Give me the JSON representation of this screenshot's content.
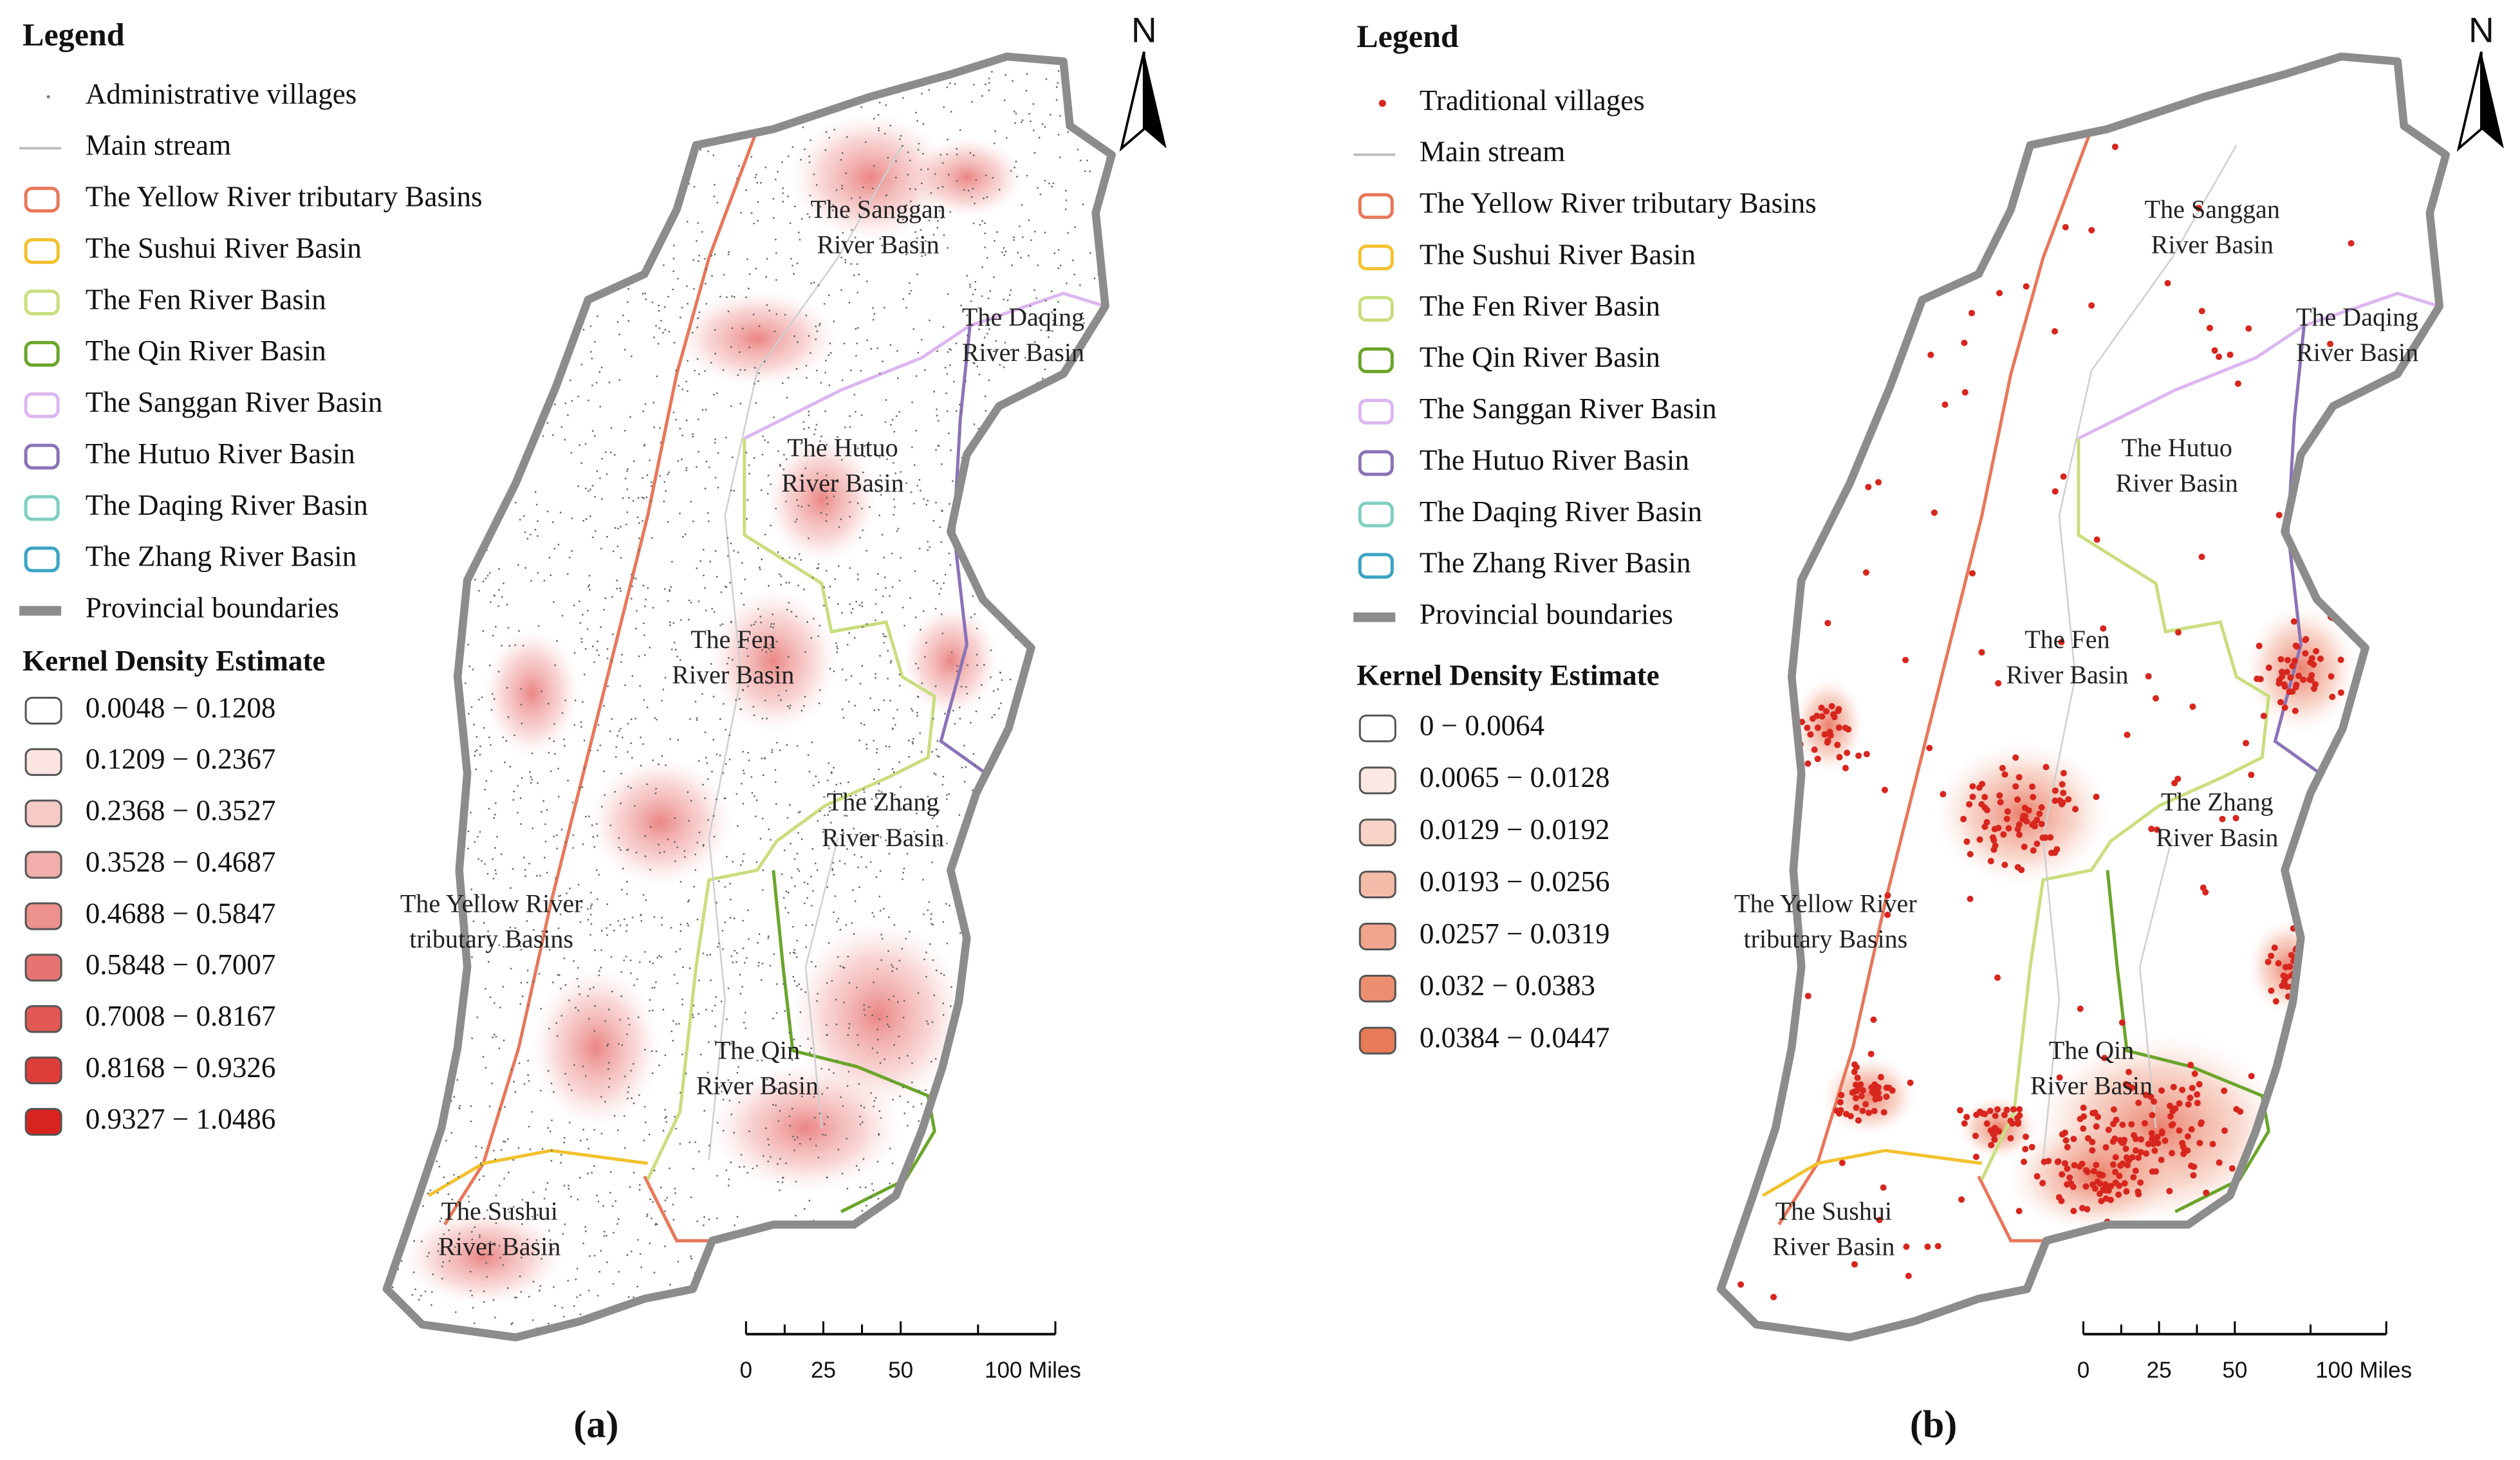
{
  "panels": [
    {
      "legend_title": "Legend",
      "legend_items": [
        {
          "label": "Administrative villages",
          "symbol": "point",
          "color": "#777777"
        },
        {
          "label": "Main stream",
          "symbol": "line",
          "color": "#bbbbbb"
        },
        {
          "label": "The Yellow River tributary Basins",
          "symbol": "patch",
          "color": "#e8775a"
        },
        {
          "label": "The Sushui River Basin",
          "symbol": "patch",
          "color": "#f2c12e"
        },
        {
          "label": "The Fen River Basin",
          "symbol": "patch",
          "color": "#c9de7e"
        },
        {
          "label": "The Qin River Basin",
          "symbol": "patch",
          "color": "#6aa52a"
        },
        {
          "label": "The Sanggan River Basin",
          "symbol": "patch",
          "color": "#dcb6f0"
        },
        {
          "label": "The Hutuo River Basin",
          "symbol": "patch",
          "color": "#8a73b8"
        },
        {
          "label": "The Daqing River Basin",
          "symbol": "patch",
          "color": "#7fcfbf"
        },
        {
          "label": "The Zhang River Basin",
          "symbol": "patch",
          "color": "#3aa3c4"
        },
        {
          "label": "Provincial boundaries",
          "symbol": "band",
          "color": "#8c8c8c"
        }
      ],
      "kde_title": "Kernel Density Estimate",
      "kde_classes": [
        {
          "label": "0.0048 − 0.1208",
          "color": "#ffffff"
        },
        {
          "label": "0.1209 − 0.2367",
          "color": "#fbe4e2"
        },
        {
          "label": "0.2368 − 0.3527",
          "color": "#f6cac6"
        },
        {
          "label": "0.3528 − 0.4687",
          "color": "#f1aeaa"
        },
        {
          "label": "0.4688 − 0.5847",
          "color": "#ec918d"
        },
        {
          "label": "0.5848 − 0.7007",
          "color": "#e77470"
        },
        {
          "label": "0.7008 − 0.8167",
          "color": "#e25854"
        },
        {
          "label": "0.8168 − 0.9326",
          "color": "#de3d39"
        },
        {
          "label": "0.9327 − 1.0486",
          "color": "#d8231f"
        }
      ],
      "basin_labels": [
        [
          "The Sanggan",
          "River Basin"
        ],
        [
          "The Daqing",
          "River Basin"
        ],
        [
          "The Hutuo",
          "River Basin"
        ],
        [
          "The Fen",
          "River Basin"
        ],
        [
          "The Zhang",
          "River Basin"
        ],
        [
          "The Yellow River",
          "tributary Basins"
        ],
        [
          "The Qin",
          "River Basin"
        ],
        [
          "The Sushui",
          "River Basin"
        ]
      ],
      "north": "N",
      "scale_ticks": [
        0,
        25,
        50,
        {
          "value": 100,
          "label": "100 Miles"
        }
      ],
      "panel_label": "(a)"
    },
    {
      "legend_title": "Legend",
      "legend_items": [
        {
          "label": "Traditional villages",
          "symbol": "point",
          "color": "#d7261e"
        },
        {
          "label": "Main stream",
          "symbol": "line",
          "color": "#bbbbbb"
        },
        {
          "label": "The Yellow River tributary Basins",
          "symbol": "patch",
          "color": "#e8775a"
        },
        {
          "label": "The Sushui River Basin",
          "symbol": "patch",
          "color": "#f2c12e"
        },
        {
          "label": "The Fen River Basin",
          "symbol": "patch",
          "color": "#c9de7e"
        },
        {
          "label": "The Qin River Basin",
          "symbol": "patch",
          "color": "#6aa52a"
        },
        {
          "label": "The Sanggan River Basin",
          "symbol": "patch",
          "color": "#dcb6f0"
        },
        {
          "label": "The Hutuo River Basin",
          "symbol": "patch",
          "color": "#8a73b8"
        },
        {
          "label": "The Daqing River Basin",
          "symbol": "patch",
          "color": "#7fcfbf"
        },
        {
          "label": "The Zhang River Basin",
          "symbol": "patch",
          "color": "#3aa3c4"
        },
        {
          "label": "Provincial boundaries",
          "symbol": "band",
          "color": "#8c8c8c"
        }
      ],
      "kde_title": "Kernel Density Estimate",
      "kde_classes": [
        {
          "label": "0 − 0.0064",
          "color": "#ffffff"
        },
        {
          "label": "0.0065 − 0.0128",
          "color": "#fbe8e2"
        },
        {
          "label": "0.0129 − 0.0192",
          "color": "#f8d3c8"
        },
        {
          "label": "0.0193 − 0.0256",
          "color": "#f4bba9"
        },
        {
          "label": "0.0257 − 0.0319",
          "color": "#f0a58c"
        },
        {
          "label": "0.032 − 0.0383",
          "color": "#ec8f70"
        },
        {
          "label": "0.0384 − 0.0447",
          "color": "#e87a57"
        }
      ],
      "basin_labels": [
        [
          "The Sanggan",
          "River Basin"
        ],
        [
          "The Daqing",
          "River Basin"
        ],
        [
          "The Hutuo",
          "River Basin"
        ],
        [
          "The Fen",
          "River Basin"
        ],
        [
          "The Zhang",
          "River Basin"
        ],
        [
          "The Yellow River",
          "tributary Basins"
        ],
        [
          "The Qin",
          "River Basin"
        ],
        [
          "The Sushui",
          "River Basin"
        ]
      ],
      "north": "N",
      "scale_ticks": [
        0,
        25,
        50,
        {
          "value": 100,
          "label": "100 Miles"
        }
      ],
      "panel_label": "(b)"
    }
  ]
}
